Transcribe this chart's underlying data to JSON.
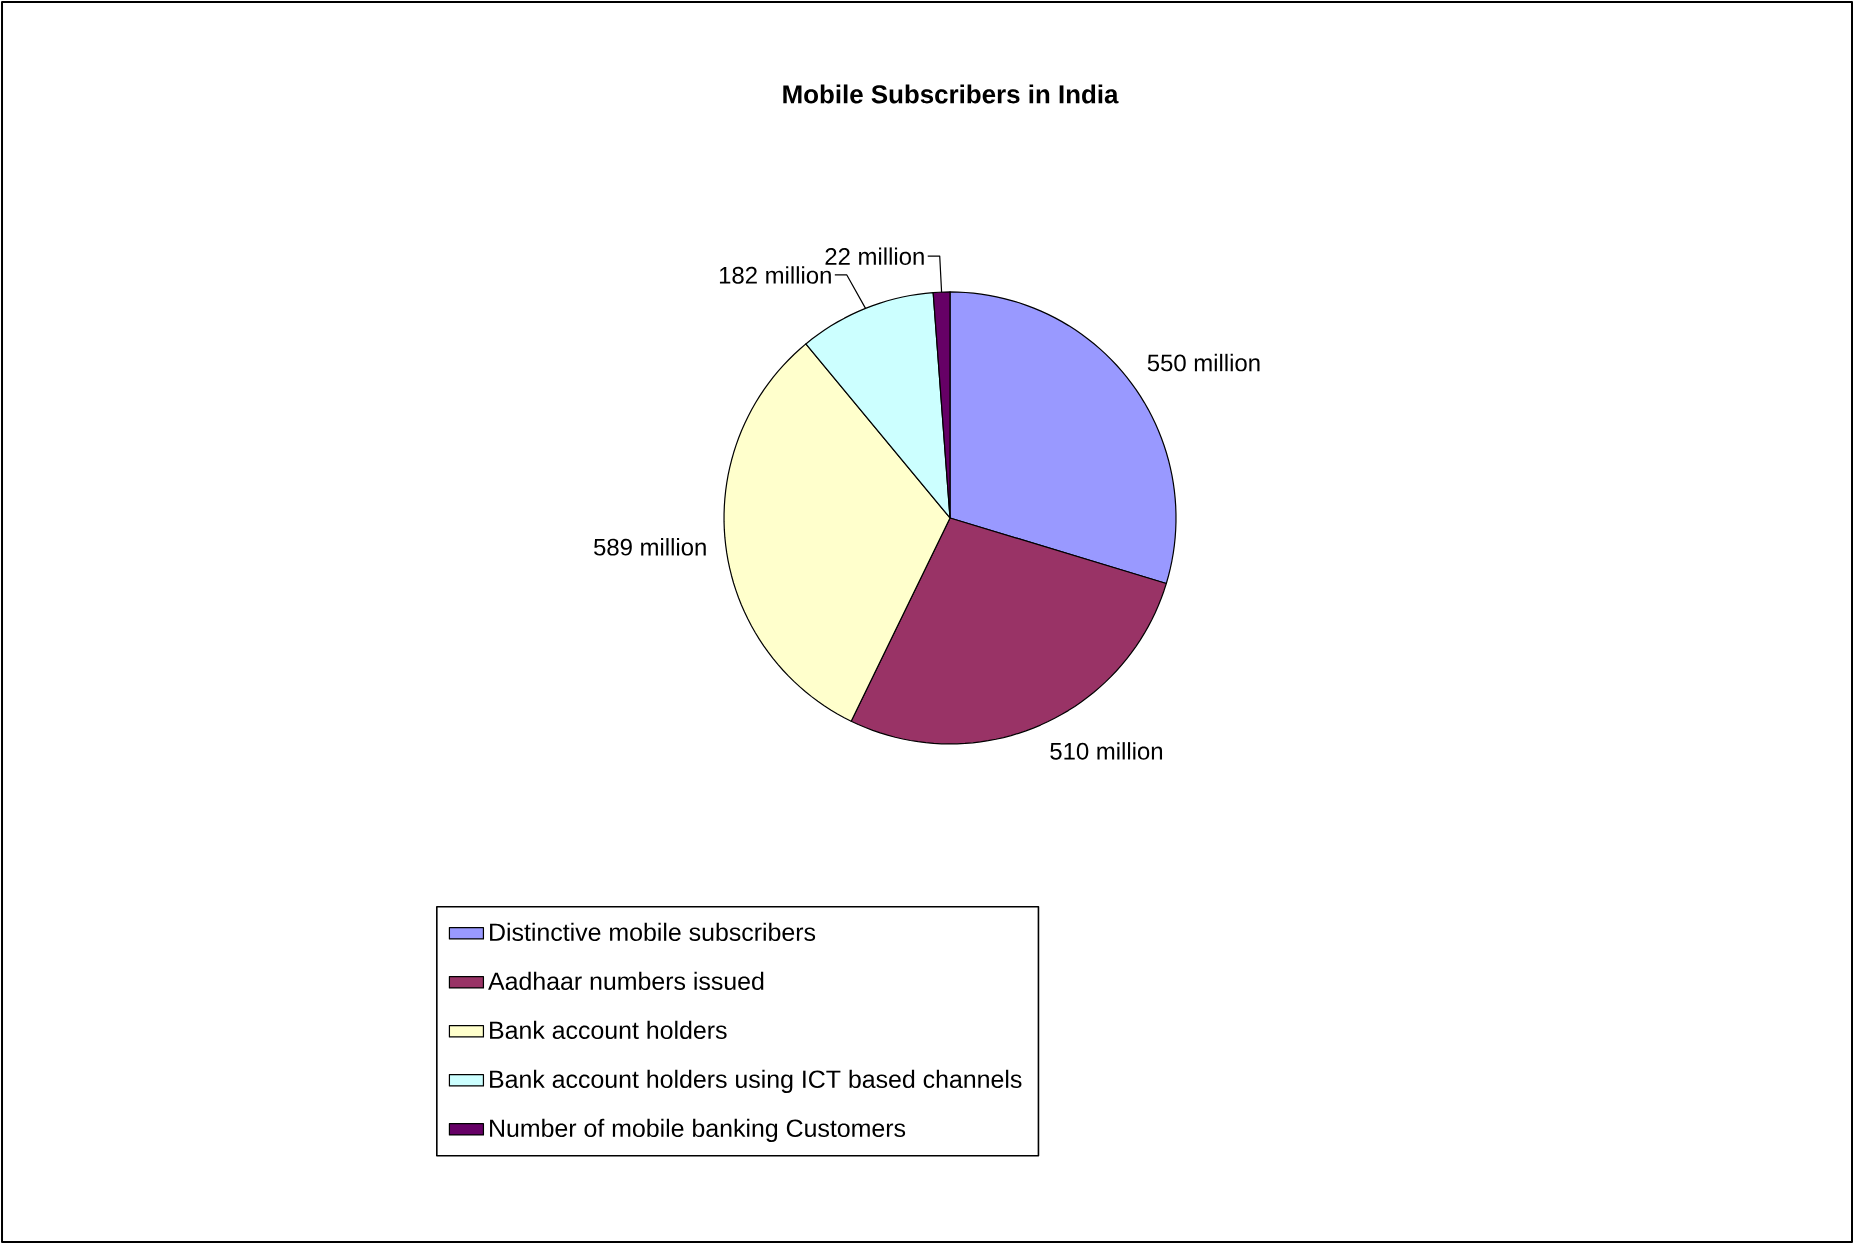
{
  "chart_data": {
    "type": "pie",
    "title": "Mobile Subscribers in India",
    "categories": [
      "Distinctive mobile subscribers",
      "Aadhaar numbers issued",
      "Bank account holders",
      "Bank account holders using ICT based channels",
      "Number of mobile banking Customers"
    ],
    "values": [
      550,
      510,
      589,
      182,
      22
    ],
    "value_labels": [
      "550 million",
      "510 million",
      "589 million",
      "182 million",
      "22 million"
    ],
    "colors": [
      "#9999ff",
      "#993366",
      "#ffffcc",
      "#ccffff",
      "#660066"
    ],
    "legend": "bottom"
  }
}
